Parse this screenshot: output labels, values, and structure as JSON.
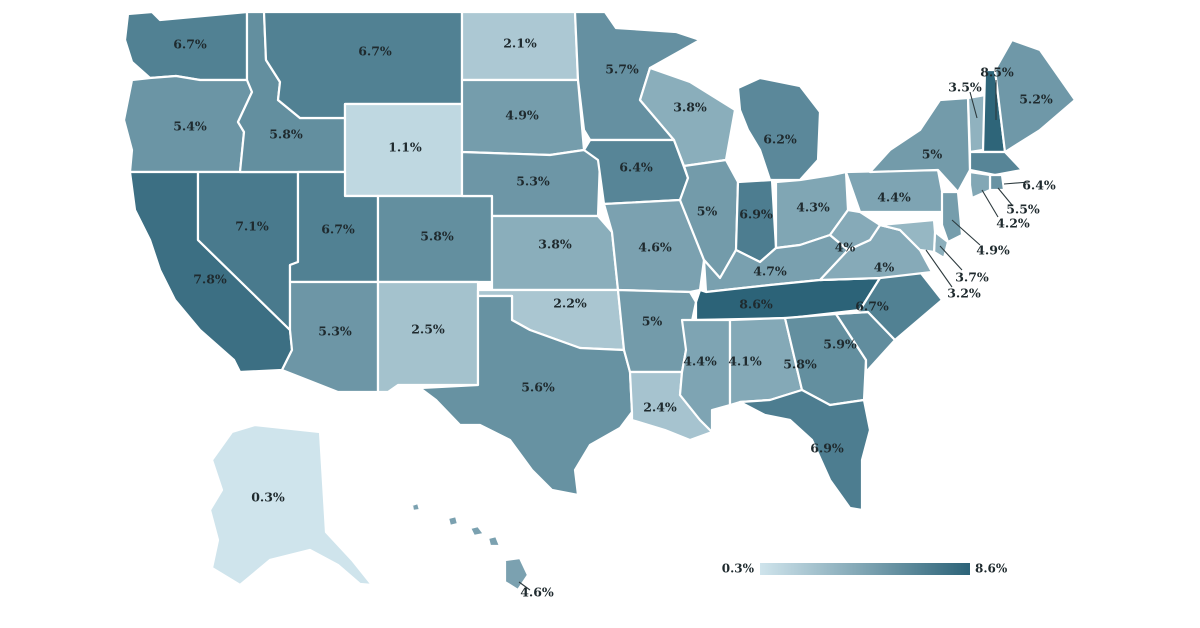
{
  "colors": {
    "min": "#cfe4ec",
    "max": "#2c6378",
    "border": "#ffffff",
    "text": "#1f2a2e"
  },
  "legend": {
    "min_label": "0.3%",
    "max_label": "8.6%"
  },
  "states": {
    "WA": "6.7%",
    "OR": "5.4%",
    "CA": "7.8%",
    "ID": "5.8%",
    "NV": "7.1%",
    "MT": "6.7%",
    "WY": "1.1%",
    "UT": "6.7%",
    "AZ": "5.3%",
    "CO": "5.8%",
    "NM": "2.5%",
    "ND": "2.1%",
    "SD": "4.9%",
    "NE": "5.3%",
    "KS": "3.8%",
    "OK": "2.2%",
    "TX": "5.6%",
    "MN": "5.7%",
    "IA": "6.4%",
    "MO": "4.6%",
    "AR": "5%",
    "LA": "2.4%",
    "WI": "3.8%",
    "IL": "5%",
    "MI": "6.2%",
    "IN": "6.9%",
    "OH": "4.3%",
    "KY": "4.7%",
    "TN": "8.6%",
    "MS": "4.4%",
    "AL": "4.1%",
    "GA": "5.8%",
    "FL": "6.9%",
    "SC": "5.9%",
    "NC": "6.7%",
    "VA": "4%",
    "WV": "4%",
    "PA": "4.4%",
    "NY": "5%",
    "ME": "5.2%",
    "VT": "3.5%",
    "NH": "8.5%",
    "MA": "6.4%",
    "RI": "5.5%",
    "CT": "4.2%",
    "NJ": "4.9%",
    "DE": "3.7%",
    "MD": "3.2%",
    "AK": "0.3%",
    "HI": "4.6%"
  }
}
